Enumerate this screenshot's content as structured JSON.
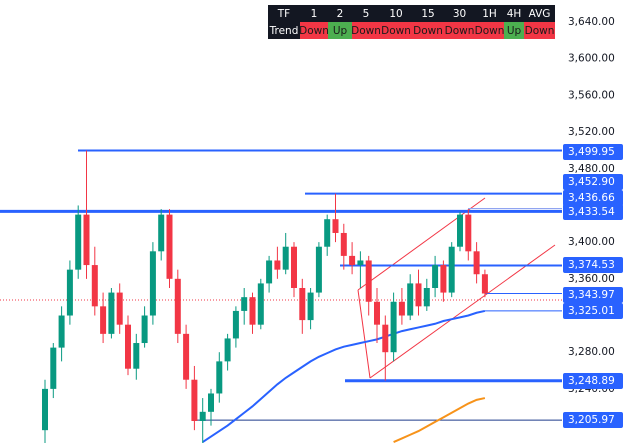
{
  "chart_data": {
    "type": "candlestick",
    "open": [
      3195,
      3240,
      3285,
      3320,
      3370,
      3430,
      3375,
      3330,
      3300,
      3345,
      3310,
      3262,
      3290,
      3320,
      3390,
      3430,
      3360,
      3300,
      3250,
      3205,
      3215,
      3235,
      3270,
      3295,
      3325,
      3340,
      3310,
      3355,
      3380,
      3370,
      3395,
      3350,
      3315,
      3345,
      3395,
      3425,
      3410,
      3385,
      3375,
      3380,
      3335,
      3310,
      3280,
      3335,
      3320,
      3355,
      3330,
      3350,
      3375,
      3345,
      3395,
      3430,
      3390,
      3365
    ],
    "high": [
      3250,
      3290,
      3330,
      3380,
      3440,
      3499.95,
      3395,
      3345,
      3350,
      3355,
      3320,
      3300,
      3330,
      3400,
      3436,
      3436,
      3370,
      3310,
      3265,
      3230,
      3240,
      3280,
      3300,
      3330,
      3350,
      3345,
      3360,
      3385,
      3395,
      3410,
      3400,
      3360,
      3350,
      3400,
      3430,
      3452.9,
      3420,
      3400,
      3390,
      3385,
      3350,
      3320,
      3345,
      3350,
      3365,
      3370,
      3360,
      3385,
      3380,
      3400,
      3433,
      3436,
      3400,
      3370
    ],
    "low": [
      3181,
      3230,
      3270,
      3310,
      3360,
      3360,
      3320,
      3290,
      3295,
      3300,
      3255,
      3250,
      3285,
      3310,
      3380,
      3350,
      3290,
      3240,
      3195,
      3181,
      3200,
      3225,
      3260,
      3285,
      3310,
      3300,
      3305,
      3345,
      3360,
      3365,
      3340,
      3300,
      3305,
      3340,
      3385,
      3400,
      3370,
      3365,
      3350,
      3320,
      3290,
      3249,
      3270,
      3310,
      3315,
      3320,
      3325,
      3340,
      3335,
      3340,
      3390,
      3380,
      3355,
      3340
    ],
    "close": [
      3240,
      3285,
      3320,
      3370,
      3430,
      3375,
      3330,
      3300,
      3345,
      3310,
      3262,
      3290,
      3320,
      3390,
      3430,
      3360,
      3300,
      3250,
      3205,
      3215,
      3235,
      3270,
      3295,
      3325,
      3340,
      3310,
      3355,
      3380,
      3370,
      3395,
      3350,
      3315,
      3345,
      3395,
      3425,
      3410,
      3385,
      3375,
      3380,
      3335,
      3310,
      3280,
      3335,
      3320,
      3355,
      3330,
      3350,
      3375,
      3345,
      3395,
      3430,
      3390,
      3365,
      3344
    ],
    "up_color": "#089981",
    "down_color": "#f23645",
    "series": [
      {
        "color": "#2962ff",
        "values": [
          null,
          null,
          null,
          null,
          null,
          null,
          null,
          null,
          null,
          null,
          null,
          null,
          null,
          null,
          null,
          null,
          null,
          null,
          null,
          3182,
          3188,
          3194,
          3200,
          3207,
          3214,
          3221,
          3229,
          3237,
          3245,
          3252,
          3258,
          3264,
          3270,
          3275,
          3279,
          3283,
          3286,
          3288,
          3290,
          3292,
          3294,
          3297,
          3300,
          3303,
          3305,
          3307,
          3309,
          3311,
          3314,
          3316,
          3318,
          3320,
          3323,
          3325
        ]
      },
      {
        "color": "#f7931a",
        "values": [
          null,
          null,
          null,
          null,
          null,
          null,
          null,
          null,
          null,
          null,
          null,
          null,
          null,
          null,
          null,
          null,
          null,
          null,
          null,
          null,
          null,
          null,
          null,
          null,
          null,
          null,
          null,
          null,
          null,
          null,
          null,
          null,
          null,
          null,
          null,
          null,
          null,
          null,
          null,
          null,
          null,
          null,
          3182,
          3186,
          3190,
          3194,
          3199,
          3204,
          3209,
          3214,
          3219,
          3224,
          3228,
          3230
        ]
      }
    ],
    "levels": [
      {
        "value": 3499.95,
        "label": "3,499.95"
      },
      {
        "value": 3452.9,
        "label": "3,452.90"
      },
      {
        "value": 3436.66,
        "label": "3,436.66"
      },
      {
        "value": 3433.54,
        "label": "3,433.54"
      },
      {
        "value": 3374.53,
        "label": "3,374.53"
      },
      {
        "value": 3343.97,
        "label": "3,343.97"
      },
      {
        "value": 3325.01,
        "label": "3,325.01"
      },
      {
        "value": 3248.89,
        "label": "3,248.89"
      },
      {
        "value": 3205.97,
        "label": "3,205.97"
      }
    ],
    "level_color": "#2962ff",
    "ylim": [
      3181,
      3664
    ],
    "yticks": [
      {
        "value": 3640,
        "label": "3,640.00"
      },
      {
        "value": 3600,
        "label": "3,600.00"
      },
      {
        "value": 3560,
        "label": "3,560.00"
      },
      {
        "value": 3520,
        "label": "3,520.00"
      },
      {
        "value": 3480,
        "label": "3,480.00"
      },
      {
        "value": 3400,
        "label": "3,400.00"
      },
      {
        "value": 3360,
        "label": "3,360.00"
      },
      {
        "value": 3280,
        "label": "3,280.00"
      },
      {
        "value": 3240,
        "label": "3,240.00"
      }
    ]
  },
  "table": {
    "header": [
      "TF",
      "1",
      "2",
      "5",
      "10",
      "15",
      "30",
      "1H",
      "4H",
      "AVG"
    ],
    "row": [
      "Trend",
      "Down",
      "Up",
      "Down",
      "Down",
      "Down",
      "Down",
      "Down",
      "Up",
      "Down"
    ],
    "row_colors": [
      "#131722",
      "#f23645",
      "#4caf50",
      "#f23645",
      "#f23645",
      "#f23645",
      "#f23645",
      "#f23645",
      "#4caf50",
      "#f23645"
    ]
  }
}
